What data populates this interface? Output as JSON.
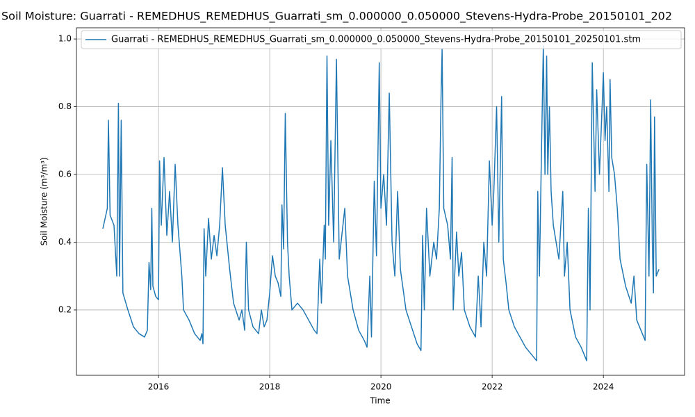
{
  "chart_data": {
    "type": "line",
    "title": "Soil Moisture: Guarrati - REMEDHUS_REMEDHUS_Guarrati_sm_0.000000_0.050000_Stevens-Hydra-Probe_20150101_202",
    "xlabel": "Time",
    "ylabel": "Soil Moisture (m³/m³)",
    "grid": true,
    "legend": "upper left",
    "xlim": [
      2014.525,
      2025.46
    ],
    "xticks": [
      2016,
      2018,
      2020,
      2022,
      2024
    ],
    "ylim": [
      0.007,
      1.033
    ],
    "yticks": [
      0.2,
      0.4,
      0.6,
      0.8,
      {
        "value": 1,
        "label": "1.0"
      }
    ],
    "x": [
      2015.0,
      2015.08,
      2015.1,
      2015.13,
      2015.2,
      2015.25,
      2015.28,
      2015.3,
      2015.33,
      2015.36,
      2015.45,
      2015.55,
      2015.65,
      2015.75,
      2015.8,
      2015.83,
      2015.86,
      2015.88,
      2015.9,
      2015.95,
      2016.0,
      2016.02,
      2016.05,
      2016.1,
      2016.15,
      2016.2,
      2016.25,
      2016.3,
      2016.35,
      2016.42,
      2016.45,
      2016.55,
      2016.65,
      2016.75,
      2016.78,
      2016.8,
      2016.82,
      2016.85,
      2016.9,
      2016.95,
      2017.0,
      2017.05,
      2017.1,
      2017.15,
      2017.2,
      2017.28,
      2017.35,
      2017.45,
      2017.5,
      2017.55,
      2017.58,
      2017.62,
      2017.7,
      2017.8,
      2017.85,
      2017.9,
      2017.95,
      2018.0,
      2018.05,
      2018.1,
      2018.15,
      2018.2,
      2018.22,
      2018.25,
      2018.28,
      2018.32,
      2018.35,
      2018.4,
      2018.5,
      2018.6,
      2018.7,
      2018.8,
      2018.85,
      2018.9,
      2018.93,
      2018.98,
      2019.0,
      2019.03,
      2019.06,
      2019.1,
      2019.15,
      2019.2,
      2019.25,
      2019.35,
      2019.4,
      2019.5,
      2019.6,
      2019.7,
      2019.75,
      2019.8,
      2019.83,
      2019.88,
      2019.92,
      2019.97,
      2020.0,
      2020.05,
      2020.1,
      2020.15,
      2020.2,
      2020.25,
      2020.3,
      2020.35,
      2020.45,
      2020.55,
      2020.65,
      2020.72,
      2020.75,
      2020.78,
      2020.82,
      2020.88,
      2020.95,
      2021.0,
      2021.05,
      2021.08,
      2021.1,
      2021.13,
      2021.2,
      2021.25,
      2021.28,
      2021.3,
      2021.36,
      2021.4,
      2021.45,
      2021.5,
      2021.6,
      2021.7,
      2021.75,
      2021.8,
      2021.85,
      2021.9,
      2021.95,
      2022.0,
      2022.03,
      2022.08,
      2022.12,
      2022.17,
      2022.2,
      2022.25,
      2022.3,
      2022.4,
      2022.5,
      2022.6,
      2022.7,
      2022.75,
      2022.8,
      2022.82,
      2022.85,
      2022.88,
      2022.92,
      2022.95,
      2022.98,
      2023.0,
      2023.03,
      2023.06,
      2023.1,
      2023.2,
      2023.27,
      2023.3,
      2023.35,
      2023.4,
      2023.5,
      2023.6,
      2023.65,
      2023.7,
      2023.73,
      2023.76,
      2023.8,
      2023.85,
      2023.88,
      2023.93,
      2024.0,
      2024.03,
      2024.06,
      2024.1,
      2024.12,
      2024.15,
      2024.2,
      2024.25,
      2024.3,
      2024.4,
      2024.5,
      2024.55,
      2024.6,
      2024.7,
      2024.75,
      2024.78,
      2024.82,
      2024.85,
      2024.88,
      2024.9,
      2024.92,
      2024.95,
      2025.0
    ],
    "series": [
      {
        "name": "Guarrati - REMEDHUS_REMEDHUS_Guarrati_sm_0.000000_0.050000_Stevens-Hydra-Probe_20150101_20250101.stm",
        "color": "#1f77b4",
        "values": [
          0.44,
          0.5,
          0.76,
          0.48,
          0.45,
          0.3,
          0.81,
          0.3,
          0.76,
          0.25,
          0.2,
          0.15,
          0.13,
          0.12,
          0.14,
          0.34,
          0.26,
          0.5,
          0.27,
          0.24,
          0.23,
          0.64,
          0.45,
          0.65,
          0.42,
          0.55,
          0.4,
          0.63,
          0.45,
          0.3,
          0.2,
          0.17,
          0.13,
          0.11,
          0.13,
          0.1,
          0.44,
          0.3,
          0.47,
          0.35,
          0.42,
          0.36,
          0.45,
          0.62,
          0.45,
          0.32,
          0.22,
          0.17,
          0.2,
          0.14,
          0.4,
          0.2,
          0.15,
          0.13,
          0.2,
          0.15,
          0.17,
          0.25,
          0.36,
          0.3,
          0.28,
          0.24,
          0.51,
          0.38,
          0.78,
          0.4,
          0.3,
          0.2,
          0.22,
          0.2,
          0.17,
          0.14,
          0.13,
          0.35,
          0.22,
          0.45,
          0.35,
          0.95,
          0.45,
          0.7,
          0.4,
          0.94,
          0.35,
          0.5,
          0.3,
          0.2,
          0.14,
          0.11,
          0.09,
          0.3,
          0.12,
          0.58,
          0.36,
          0.93,
          0.5,
          0.6,
          0.45,
          0.84,
          0.4,
          0.3,
          0.55,
          0.32,
          0.2,
          0.15,
          0.1,
          0.08,
          0.42,
          0.2,
          0.5,
          0.3,
          0.4,
          0.35,
          0.5,
          0.82,
          0.97,
          0.5,
          0.45,
          0.35,
          0.65,
          0.2,
          0.43,
          0.3,
          0.37,
          0.2,
          0.15,
          0.12,
          0.3,
          0.15,
          0.4,
          0.3,
          0.64,
          0.45,
          0.55,
          0.8,
          0.4,
          0.83,
          0.35,
          0.28,
          0.2,
          0.15,
          0.12,
          0.09,
          0.07,
          0.06,
          0.05,
          0.55,
          0.3,
          0.6,
          0.98,
          0.6,
          0.95,
          0.6,
          0.8,
          0.55,
          0.45,
          0.35,
          0.55,
          0.3,
          0.4,
          0.2,
          0.12,
          0.09,
          0.07,
          0.05,
          0.5,
          0.2,
          0.93,
          0.55,
          0.85,
          0.6,
          0.9,
          0.7,
          0.8,
          0.55,
          0.88,
          0.65,
          0.6,
          0.5,
          0.35,
          0.27,
          0.22,
          0.3,
          0.17,
          0.13,
          0.11,
          0.63,
          0.3,
          0.82,
          0.4,
          0.25,
          0.77,
          0.3,
          0.32
        ]
      }
    ]
  }
}
